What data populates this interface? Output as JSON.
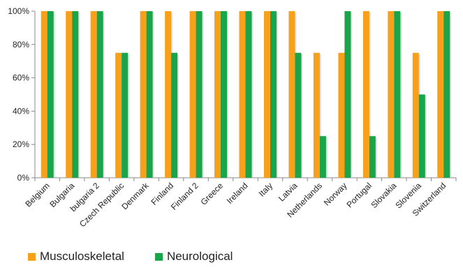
{
  "chart_data": {
    "type": "bar",
    "title": "",
    "xlabel": "",
    "ylabel": "",
    "ylim": [
      0,
      100
    ],
    "y_ticks": [
      "0%",
      "20%",
      "40%",
      "60%",
      "80%",
      "100%"
    ],
    "grid": false,
    "legend_position": "bottom-left",
    "categories": [
      "Belgium",
      "Bulgaria",
      "bulgaria 2",
      "Czech Republic",
      "Denmark",
      "Finland",
      "Finland 2",
      "Greece",
      "Ireland",
      "Italy",
      "Latvia",
      "Netherlands",
      "Norway",
      "Portugal",
      "Slovakia",
      "Slovenia",
      "Switzerland"
    ],
    "series": [
      {
        "name": "Musculoskeletal",
        "color": "#F7A11A",
        "values": [
          100,
          100,
          100,
          75,
          100,
          100,
          100,
          100,
          100,
          100,
          100,
          75,
          75,
          100,
          100,
          75,
          100
        ]
      },
      {
        "name": "Neurological",
        "color": "#1AA54B",
        "values": [
          100,
          100,
          100,
          75,
          100,
          75,
          100,
          100,
          100,
          100,
          75,
          25,
          100,
          25,
          100,
          50,
          100
        ]
      }
    ]
  }
}
